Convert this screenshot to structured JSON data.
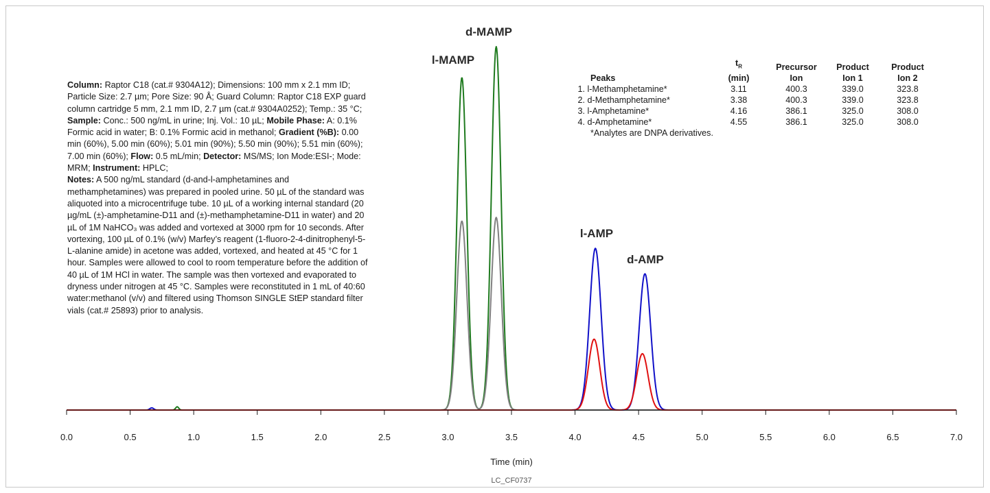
{
  "conditions": {
    "column_label": "Column:",
    "column_text": " Raptor C18 (cat.# 9304A12); Dimensions: 100 mm x 2.1 mm ID; Particle Size: 2.7 µm; Pore Size: 90 Å; Guard Column: Raptor C18 EXP guard column cartridge 5 mm, 2.1 mm ID, 2.7 µm (cat.# 9304A0252); Temp.: 35 °C; ",
    "sample_label": "Sample:",
    "sample_text": " Conc.: 500 ng/mL in urine; Inj. Vol.: 10 µL; ",
    "mobile_label": "Mobile Phase:",
    "mobile_text": " A: 0.1% Formic acid in water; B: 0.1% Formic acid in methanol; ",
    "gradient_label": "Gradient (%B):",
    "gradient_text": " 0.00 min (60%), 5.00 min (60%); 5.01 min (90%); 5.50 min (90%); 5.51 min (60%); 7.00 min (60%); ",
    "flow_label": "Flow:",
    "flow_text": " 0.5 mL/min; ",
    "detector_label": "Detector:",
    "detector_text": " MS/MS; Ion Mode:ESI-; Mode: MRM; ",
    "instrument_label": "Instrument:",
    "instrument_text": " HPLC; ",
    "notes_label": "Notes:",
    "notes_text": " A 500 ng/mL standard (d-and-l-amphetamines and methamphetamines) was prepared in pooled urine. 50 µL of the standard was aliquoted into a microcentrifuge tube. 10 µL of a working internal standard (20 µg/mL (±)-amphetamine-D11 and (±)-methamphetamine-D11 in water) and 20 µL of 1M NaHCO₃ was added and vortexed at 3000 rpm for 10 seconds. After vortexing, 100 µL of 0.1% (w/v) Marfey’s reagent (1-fluoro-2-4-dinitrophenyl-5-L-alanine amide) in acetone was added, vortexed, and heated at 45 °C for 1 hour. Samples were allowed to cool to room temperature before the addition of 40 µL of 1M HCl in water. The sample was then vortexed and evaporated to dryness under nitrogen at 45 °C. Samples were reconstituted in 1 mL of 40:60 water:methanol (v/v) and filtered using Thomson SINGLE StEP standard filter vials (cat.# 25893) prior to analysis."
  },
  "peak_table": {
    "headers": {
      "peaks": "Peaks",
      "tr_main": "t",
      "tr_sub": "R",
      "tr_unit": "(min)",
      "precursor_1": "Precursor",
      "precursor_2": "Ion",
      "product1_1": "Product",
      "product1_2": "Ion 1",
      "product2_1": "Product",
      "product2_2": "Ion 2"
    },
    "rows": [
      {
        "name": " 1. l-Methamphetamine*",
        "tr": "3.11",
        "precursor": "400.3",
        "product1": "339.0",
        "product2": "323.8"
      },
      {
        "name": " 2. d-Methamphetamine*",
        "tr": "3.38",
        "precursor": "400.3",
        "product1": "339.0",
        "product2": "323.8"
      },
      {
        "name": " 3. l-Amphetamine*",
        "tr": "4.16",
        "precursor": "386.1",
        "product1": "325.0",
        "product2": "308.0"
      },
      {
        "name": " 4. d-Amphetamine*",
        "tr": "4.55",
        "precursor": "386.1",
        "product1": "325.0",
        "product2": "308.0"
      }
    ],
    "footnote": "*Analytes are DNPA derivatives."
  },
  "chart_data": {
    "type": "line",
    "xlabel": "Time (min)",
    "ylabel": "",
    "xlim": [
      0.0,
      7.0
    ],
    "ylim": [
      0,
      100
    ],
    "x_ticks": [
      "0.0",
      "0.5",
      "1.0",
      "1.5",
      "2.0",
      "2.5",
      "3.0",
      "3.5",
      "4.0",
      "4.5",
      "5.0",
      "5.5",
      "6.0",
      "6.5",
      "7.0"
    ],
    "grid": false,
    "figure_code": "LC_CF0737",
    "peak_labels": [
      {
        "text": "l-MAMP",
        "x": 3.11
      },
      {
        "text": "d-MAMP",
        "x": 3.38
      },
      {
        "text": "l-AMP",
        "x": 4.16
      },
      {
        "text": "d-AMP",
        "x": 4.55
      }
    ],
    "colors": {
      "green": "#1e7a1e",
      "gray": "#808080",
      "blue": "#1010c8",
      "red": "#e01010"
    },
    "series": [
      {
        "color": "#1e7a1e",
        "peaks": [
          {
            "rt": 3.11,
            "height": 91.5,
            "sigma": 0.038
          },
          {
            "rt": 3.38,
            "height": 100,
            "sigma": 0.038
          },
          {
            "rt": 0.87,
            "height": 0.9,
            "sigma": 0.012
          }
        ]
      },
      {
        "color": "#808080",
        "peaks": [
          {
            "rt": 3.11,
            "height": 52,
            "sigma": 0.04
          },
          {
            "rt": 3.38,
            "height": 53,
            "sigma": 0.04
          }
        ]
      },
      {
        "color": "#1010c8",
        "peaks": [
          {
            "rt": 4.16,
            "height": 44.5,
            "sigma": 0.045
          },
          {
            "rt": 4.55,
            "height": 37.5,
            "sigma": 0.045
          },
          {
            "rt": 0.67,
            "height": 0.6,
            "sigma": 0.015
          }
        ]
      },
      {
        "color": "#e01010",
        "peaks": [
          {
            "rt": 4.15,
            "height": 19.5,
            "sigma": 0.045
          },
          {
            "rt": 4.53,
            "height": 15.5,
            "sigma": 0.045
          }
        ]
      }
    ]
  }
}
